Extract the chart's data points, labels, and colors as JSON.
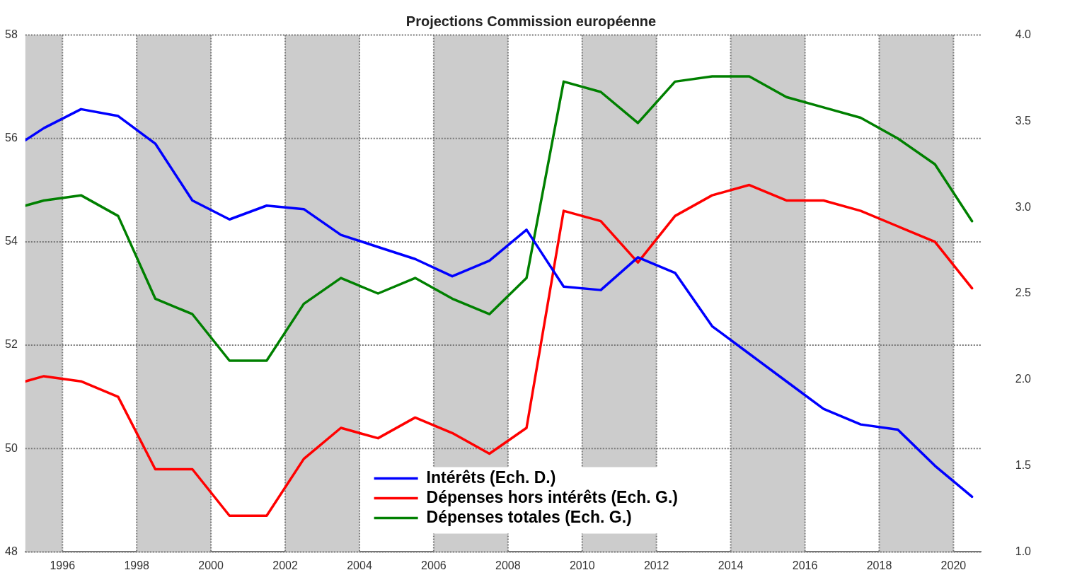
{
  "chart_data": {
    "type": "line",
    "title": "Projections Commission européenne",
    "x": [
      1995.0,
      1995.5,
      1996.5,
      1997.5,
      1998.5,
      1999.5,
      2000.5,
      2001.5,
      2002.5,
      2003.5,
      2004.5,
      2005.5,
      2006.5,
      2007.5,
      2008.5,
      2009.5,
      2010.5,
      2011.5,
      2012.5,
      2013.5,
      2014.5,
      2015.5,
      2016.5,
      2017.5,
      2018.5,
      2019.5,
      2020.5
    ],
    "series": [
      {
        "name": "Intérêts (Ech. D.)",
        "color": "#0000ff",
        "axis": "y2",
        "values": [
          3.39,
          3.46,
          3.57,
          3.53,
          3.37,
          3.04,
          2.93,
          3.01,
          2.99,
          2.84,
          2.77,
          2.7,
          2.6,
          2.69,
          2.87,
          2.54,
          2.52,
          2.71,
          2.62,
          2.31,
          2.15,
          1.99,
          1.83,
          1.74,
          1.71,
          1.5,
          1.32
        ]
      },
      {
        "name": "Dépenses hors intérêts (Ech. G.)",
        "color": "#ff0000",
        "values": [
          51.3,
          51.4,
          51.3,
          51.0,
          49.6,
          49.6,
          48.7,
          48.7,
          49.8,
          50.4,
          50.2,
          50.6,
          50.3,
          49.9,
          50.4,
          54.6,
          54.4,
          53.6,
          54.5,
          54.9,
          55.1,
          54.8,
          54.8,
          54.6,
          54.3,
          54.0,
          53.1
        ]
      },
      {
        "name": "Dépenses totales (Ech. G.)",
        "color": "#008000",
        "values": [
          54.7,
          54.8,
          54.9,
          54.5,
          52.9,
          52.6,
          51.7,
          51.7,
          52.8,
          53.3,
          53.0,
          53.3,
          52.9,
          52.6,
          53.3,
          57.1,
          56.9,
          56.3,
          57.1,
          57.2,
          57.2,
          56.8,
          56.6,
          56.4,
          56.0,
          55.5,
          54.4
        ]
      }
    ],
    "xlim": [
      1995,
      2020.75
    ],
    "xticks": [
      1996,
      1998,
      2000,
      2002,
      2004,
      2006,
      2008,
      2010,
      2012,
      2014,
      2016,
      2018,
      2020
    ],
    "ylim": [
      48,
      58
    ],
    "yticks": [
      48,
      50,
      52,
      54,
      56,
      58
    ],
    "y2lim": [
      1.0,
      4.0
    ],
    "y2ticks": [
      {
        "value": 1.0,
        "label": "1.0"
      },
      {
        "value": 1.5,
        "label": "1.5"
      },
      {
        "value": 2.0,
        "label": "2.0"
      },
      {
        "value": 2.5,
        "label": "2.5"
      },
      {
        "value": 3.0,
        "label": "3.0"
      },
      {
        "value": 3.5,
        "label": "3.5"
      },
      {
        "value": 4.0,
        "label": "4.0"
      }
    ],
    "bands": [
      {
        "axis": "x",
        "from": 1995,
        "to": 1996,
        "color": "#cccccc"
      },
      {
        "axis": "x",
        "from": 1998,
        "to": 2000,
        "color": "#cccccc"
      },
      {
        "axis": "x",
        "from": 2002,
        "to": 2004,
        "color": "#cccccc"
      },
      {
        "axis": "x",
        "from": 2006,
        "to": 2008,
        "color": "#cccccc"
      },
      {
        "axis": "x",
        "from": 2010,
        "to": 2012,
        "color": "#cccccc"
      },
      {
        "axis": "x",
        "from": 2014,
        "to": 2016,
        "color": "#cccccc"
      },
      {
        "axis": "x",
        "from": 2018,
        "to": 2020,
        "color": "#cccccc"
      }
    ],
    "grid": true,
    "legend": "bottom",
    "marker": "none",
    "line_style": "solid"
  }
}
